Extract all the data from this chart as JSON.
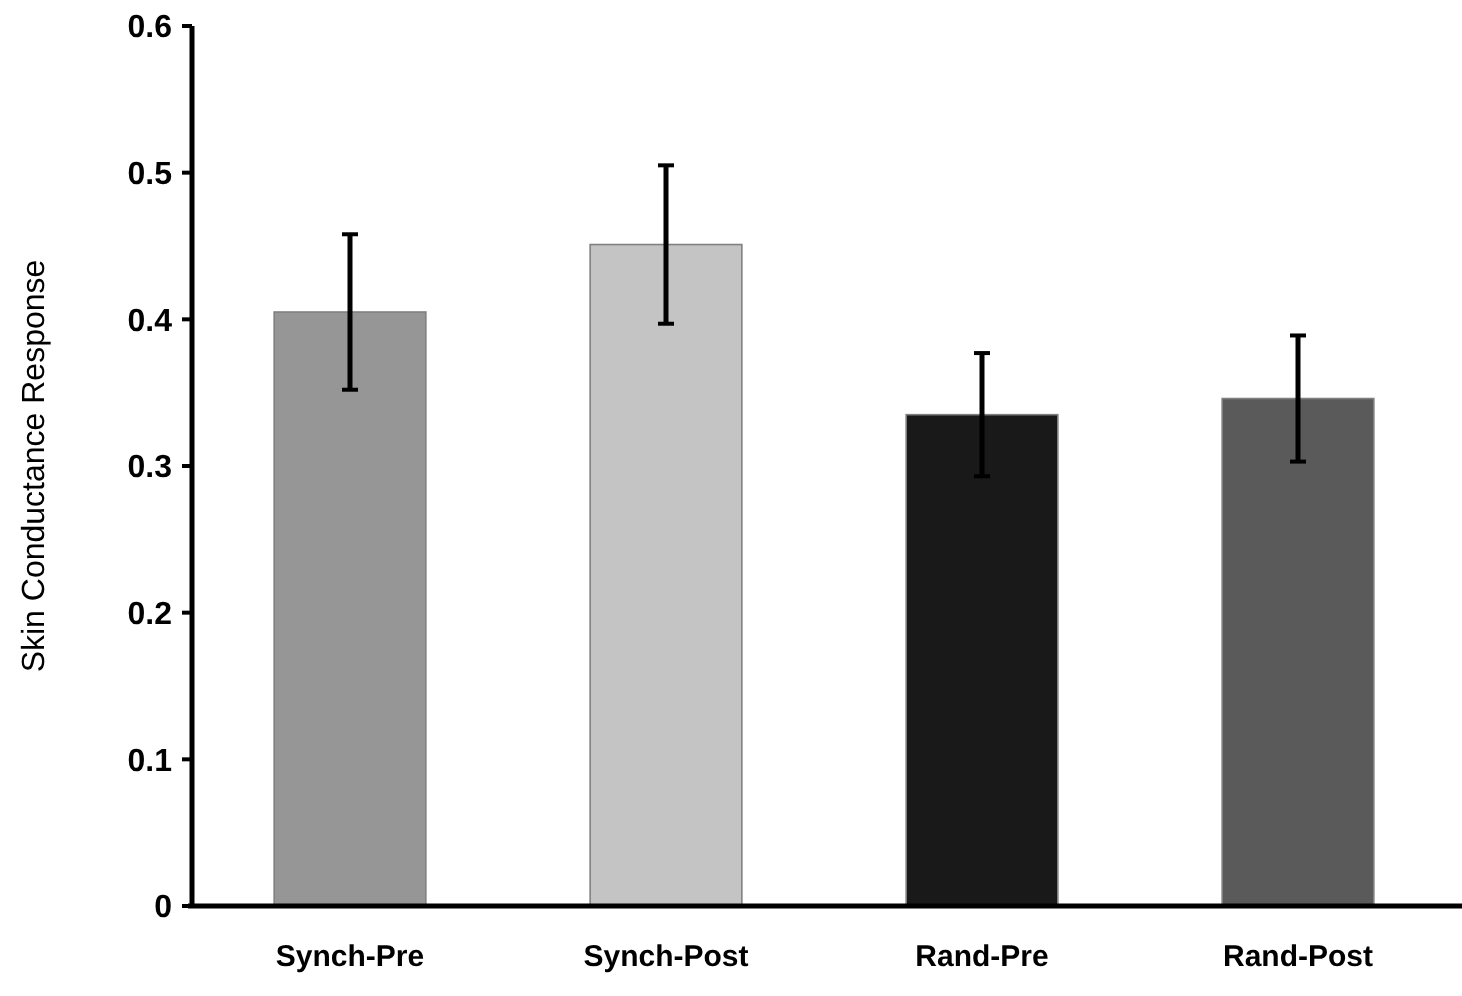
{
  "chart_data": {
    "type": "bar",
    "ylabel": "Skin Conductance Response",
    "categories": [
      "Synch-Pre",
      "Synch-Post",
      "Rand-Pre",
      "Rand-Post"
    ],
    "values": [
      0.405,
      0.451,
      0.335,
      0.346
    ],
    "errors": [
      0.053,
      0.054,
      0.042,
      0.043
    ],
    "colors": [
      "#969696",
      "#c4c4c4",
      "#191919",
      "#5a5a5a"
    ],
    "ylim": [
      0,
      0.6
    ],
    "yticks": [
      {
        "value": 0,
        "label": "0"
      },
      0.1,
      0.2,
      0.3,
      0.4,
      0.5,
      0.6
    ],
    "grid": false
  }
}
